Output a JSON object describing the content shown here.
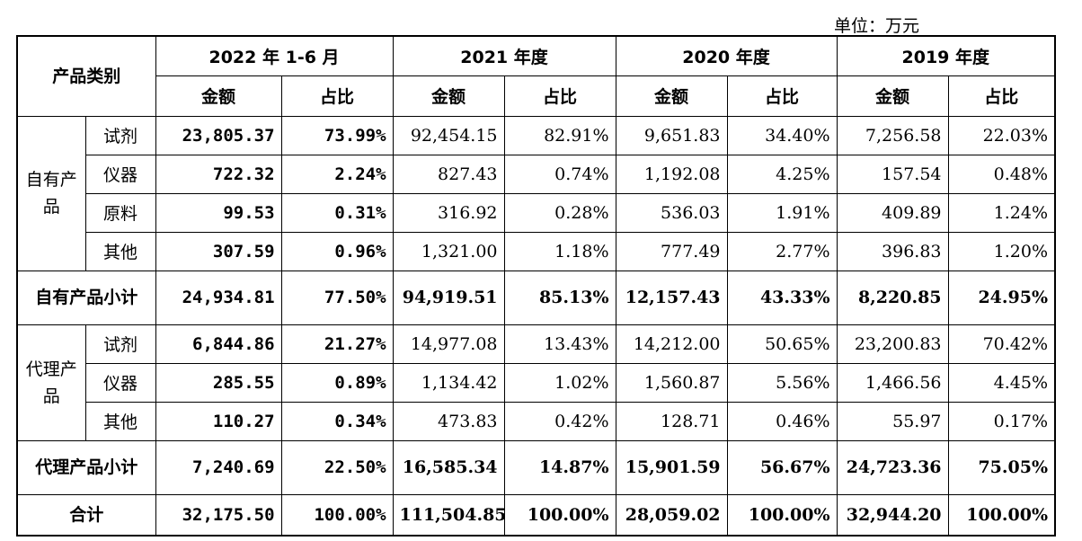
{
  "unit_label": "单位：万元",
  "header": {
    "category": "产品类别",
    "periods": [
      "2022 年 1-6 月",
      "2021 年度",
      "2020 年度",
      "2019 年度"
    ],
    "amount": "金额",
    "ratio": "占比"
  },
  "own": {
    "group": "自有产品",
    "rows": [
      {
        "item": "试剂",
        "v": [
          "23,805.37",
          "73.99%",
          "92,454.15",
          "82.91%",
          "9,651.83",
          "34.40%",
          "7,256.58",
          "22.03%"
        ]
      },
      {
        "item": "仪器",
        "v": [
          "722.32",
          "2.24%",
          "827.43",
          "0.74%",
          "1,192.08",
          "4.25%",
          "157.54",
          "0.48%"
        ]
      },
      {
        "item": "原料",
        "v": [
          "99.53",
          "0.31%",
          "316.92",
          "0.28%",
          "536.03",
          "1.91%",
          "409.89",
          "1.24%"
        ]
      },
      {
        "item": "其他",
        "v": [
          "307.59",
          "0.96%",
          "1,321.00",
          "1.18%",
          "777.49",
          "2.77%",
          "396.83",
          "1.20%"
        ]
      }
    ],
    "subtotal_label": "自有产品小计",
    "subtotal": [
      "24,934.81",
      "77.50%",
      "94,919.51",
      "85.13%",
      "12,157.43",
      "43.33%",
      "8,220.85",
      "24.95%"
    ]
  },
  "agency": {
    "group": "代理产品",
    "rows": [
      {
        "item": "试剂",
        "v": [
          "6,844.86",
          "21.27%",
          "14,977.08",
          "13.43%",
          "14,212.00",
          "50.65%",
          "23,200.83",
          "70.42%"
        ]
      },
      {
        "item": "仪器",
        "v": [
          "285.55",
          "0.89%",
          "1,134.42",
          "1.02%",
          "1,560.87",
          "5.56%",
          "1,466.56",
          "4.45%"
        ]
      },
      {
        "item": "其他",
        "v": [
          "110.27",
          "0.34%",
          "473.83",
          "0.42%",
          "128.71",
          "0.46%",
          "55.97",
          "0.17%"
        ]
      }
    ],
    "subtotal_label": "代理产品小计",
    "subtotal": [
      "7,240.69",
      "22.50%",
      "16,585.34",
      "14.87%",
      "15,901.59",
      "56.67%",
      "24,723.36",
      "75.05%"
    ]
  },
  "total": {
    "label": "合计",
    "v": [
      "32,175.50",
      "100.00%",
      "111,504.85",
      "100.00%",
      "28,059.02",
      "100.00%",
      "32,944.20",
      "100.00%"
    ]
  }
}
